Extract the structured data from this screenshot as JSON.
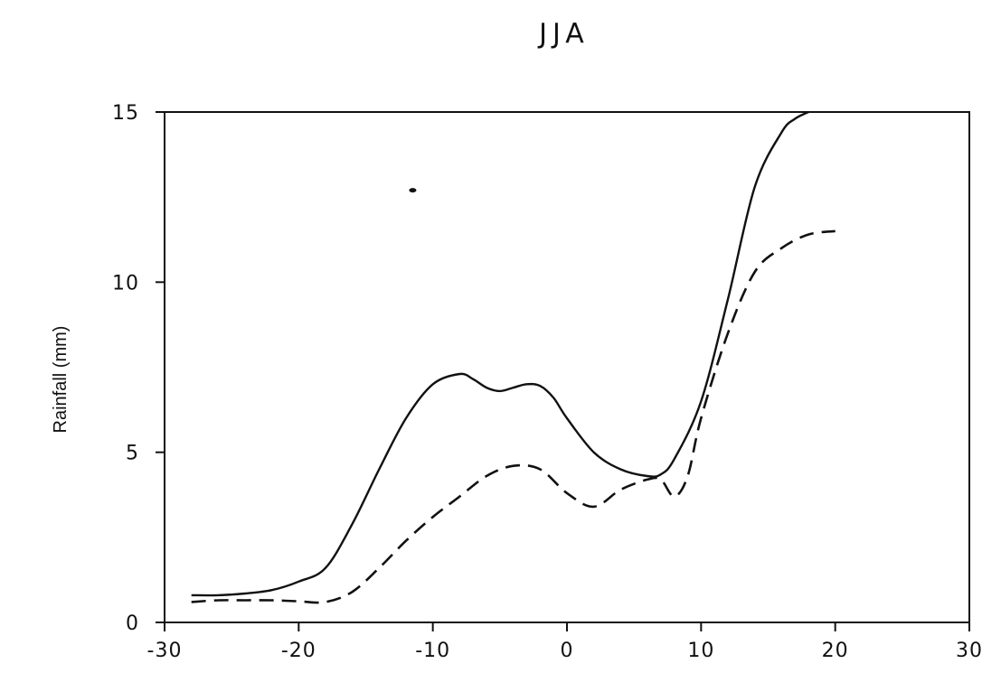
{
  "chart_data": {
    "type": "line",
    "title": "JJA",
    "xlabel": "",
    "ylabel": "Rainfall (mm)",
    "xlim": [
      -30,
      30
    ],
    "ylim": [
      0,
      15
    ],
    "grid": false,
    "legend": "none",
    "x_ticks": [
      "-30",
      "-20",
      "-10",
      "0",
      "10",
      "20",
      "30"
    ],
    "y_ticks": [
      "0",
      "5",
      "10",
      "15"
    ],
    "series": [
      {
        "style": "solid",
        "color": "#111111",
        "x": [
          -28,
          -26,
          -24,
          -22,
          -20,
          -18,
          -16,
          -14,
          -12,
          -10,
          -8,
          -7,
          -6,
          -5,
          -4,
          -3,
          -2,
          -1,
          0,
          2,
          4,
          6,
          7,
          8,
          10,
          12,
          14,
          16,
          17,
          18
        ],
        "y": [
          0.8,
          0.8,
          0.85,
          0.95,
          1.2,
          1.6,
          2.9,
          4.5,
          6.0,
          7.0,
          7.3,
          7.15,
          6.9,
          6.8,
          6.9,
          7.0,
          6.95,
          6.6,
          6.0,
          5.0,
          4.5,
          4.3,
          4.35,
          4.8,
          6.5,
          9.5,
          12.8,
          14.4,
          14.8,
          15.0
        ]
      },
      {
        "style": "dashed",
        "color": "#111111",
        "x": [
          -28,
          -26,
          -24,
          -22,
          -20,
          -18,
          -16,
          -14,
          -12,
          -10,
          -8,
          -6,
          -4,
          -2,
          0,
          2,
          4,
          6,
          7,
          8,
          9,
          10,
          12,
          14,
          16,
          18,
          20
        ],
        "y": [
          0.6,
          0.65,
          0.65,
          0.65,
          0.62,
          0.6,
          0.9,
          1.6,
          2.4,
          3.1,
          3.7,
          4.3,
          4.6,
          4.5,
          3.8,
          3.4,
          3.9,
          4.2,
          4.2,
          3.7,
          4.3,
          6.0,
          8.5,
          10.3,
          11.0,
          11.4,
          11.5
        ]
      }
    ],
    "annotations": [
      {
        "type": "dot",
        "x": -11.5,
        "y": 12.7
      }
    ]
  }
}
